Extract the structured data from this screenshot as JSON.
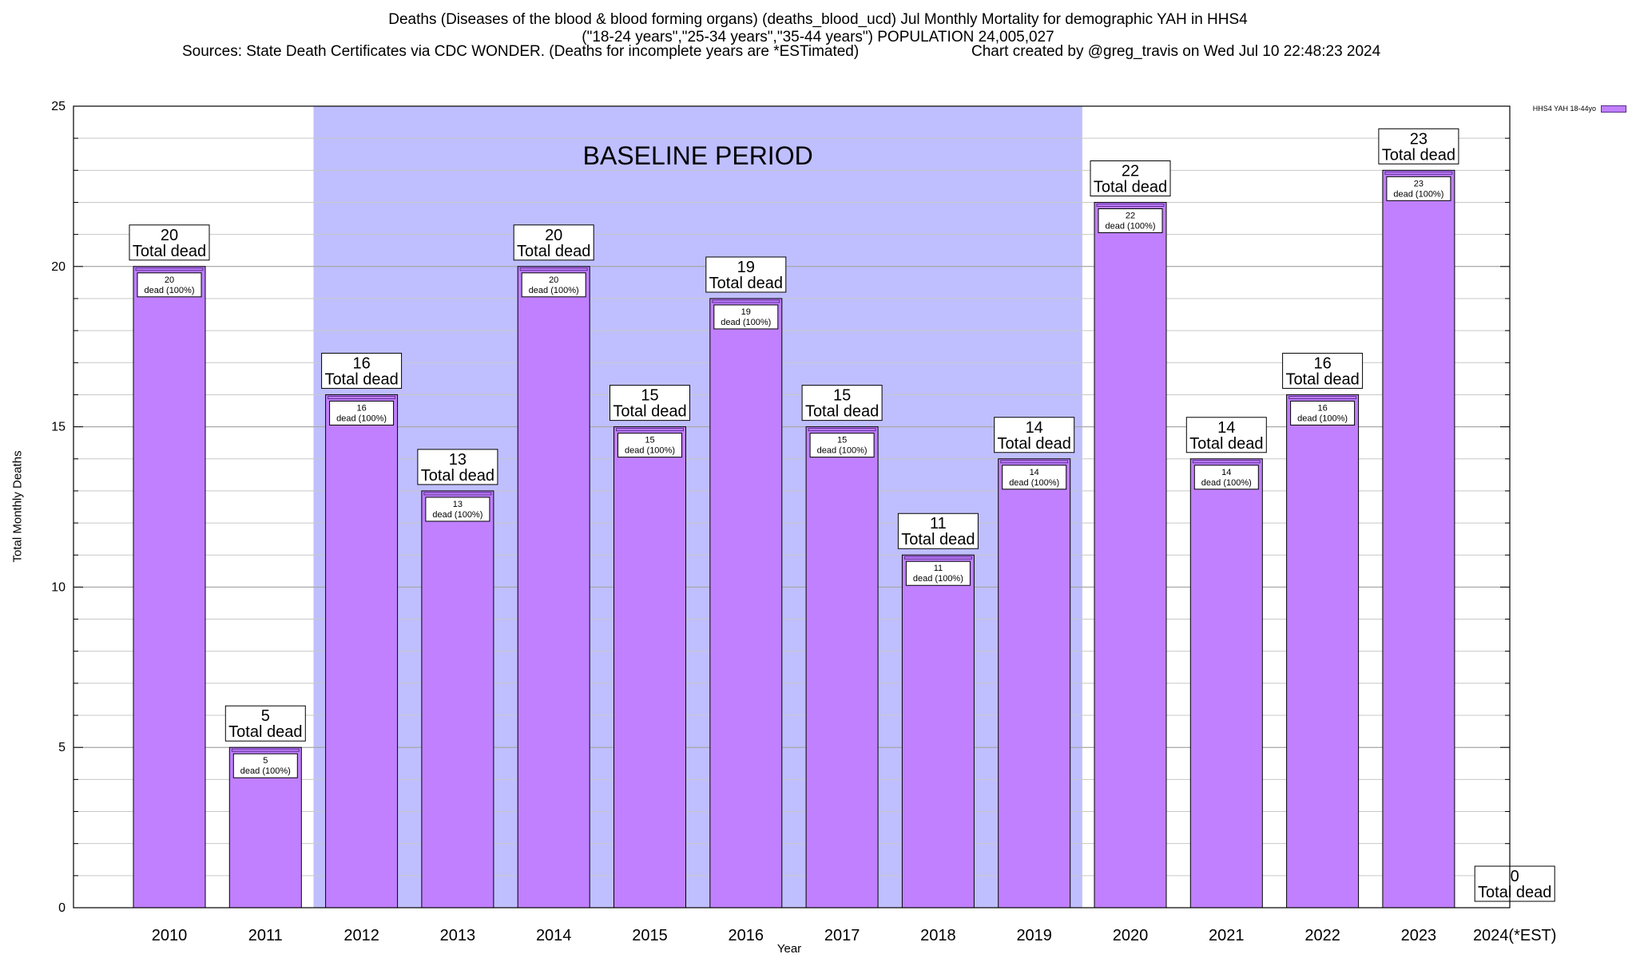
{
  "titles": {
    "line1": "Deaths (Diseases of the blood & blood forming organs) (deaths_blood_ucd) Jul Monthly Mortality for demographic YAH in HHS4",
    "line2": "(\"18-24 years\",\"25-34 years\",\"35-44 years\") POPULATION 24,005,027",
    "line3_left": "Sources: State Death Certificates via CDC WONDER. (Deaths for incomplete years are *ESTimated)",
    "line3_right": "Chart created by @greg_travis on Wed Jul 10 22:48:23 2024"
  },
  "legend": {
    "label": "HHS4 YAH 18-44yo",
    "color": "#c080ff"
  },
  "chart_data": {
    "type": "bar",
    "title": "Deaths (Diseases of the blood & blood forming organs) (deaths_blood_ucd) Jul Monthly Mortality for demographic YAH in HHS4",
    "xlabel": "Year",
    "ylabel": "Total Monthly Deaths",
    "ylim": [
      0,
      25
    ],
    "yticks": [
      0,
      5,
      10,
      15,
      20,
      25
    ],
    "grid": true,
    "legend_position": "top-right",
    "categories": [
      "2010",
      "2011",
      "2012",
      "2013",
      "2014",
      "2015",
      "2016",
      "2017",
      "2018",
      "2019",
      "2020",
      "2021",
      "2022",
      "2023",
      "2024(*EST)"
    ],
    "series": [
      {
        "name": "HHS4 YAH 18-44yo",
        "color": "#c080ff",
        "values": [
          20,
          5,
          16,
          13,
          20,
          15,
          19,
          15,
          11,
          14,
          22,
          14,
          16,
          23,
          0
        ]
      }
    ],
    "total_label": "Total dead",
    "inner_label": "dead (100%)",
    "baseline": {
      "label": "BASELINE PERIOD",
      "from": "2012",
      "to": "2019",
      "color": "#bfbfff"
    }
  }
}
